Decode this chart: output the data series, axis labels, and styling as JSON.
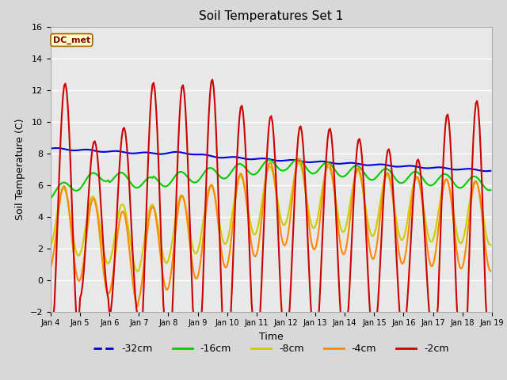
{
  "title": "Soil Temperatures Set 1",
  "xlabel": "Time",
  "ylabel": "Soil Temperature (C)",
  "ylim": [
    -2,
    16
  ],
  "background_color": "#d8d8d8",
  "plot_bg_color": "#e8e8e8",
  "grid_color": "#ffffff",
  "annotation_text": "DC_met",
  "annotation_bg": "#ffffcc",
  "annotation_border": "#aa6600",
  "annotation_text_color": "#880000",
  "x_tick_labels": [
    "Jan 4",
    "Jan 5",
    "Jan 6",
    "Jan 7",
    "Jan 8",
    "Jan 9",
    "Jan 10",
    "Jan 11",
    "Jan 12",
    "Jan 13",
    "Jan 14",
    "Jan 15",
    "Jan 16",
    "Jan 17",
    "Jan 18",
    "Jan 19"
  ],
  "series_order": [
    "-32cm",
    "-16cm",
    "-8cm",
    "-4cm",
    "-2cm"
  ],
  "series": {
    "-32cm": {
      "color": "#0000dd",
      "linewidth": 1.5
    },
    "-16cm": {
      "color": "#00cc00",
      "linewidth": 1.5
    },
    "-8cm": {
      "color": "#cccc00",
      "linewidth": 1.5
    },
    "-4cm": {
      "color": "#ff8800",
      "linewidth": 1.5
    },
    "-2cm": {
      "color": "#cc0000",
      "linewidth": 1.5
    }
  },
  "legend": [
    {
      "label": "-32cm",
      "color": "#0000dd",
      "linestyle": "--"
    },
    {
      "label": "-16cm",
      "color": "#00cc00",
      "linestyle": "-"
    },
    {
      "label": "-8cm",
      "color": "#cccc00",
      "linestyle": "-"
    },
    {
      "label": "-4cm",
      "color": "#ff8800",
      "linestyle": "-"
    },
    {
      "label": "-2cm",
      "color": "#cc0000",
      "linestyle": "-"
    }
  ]
}
